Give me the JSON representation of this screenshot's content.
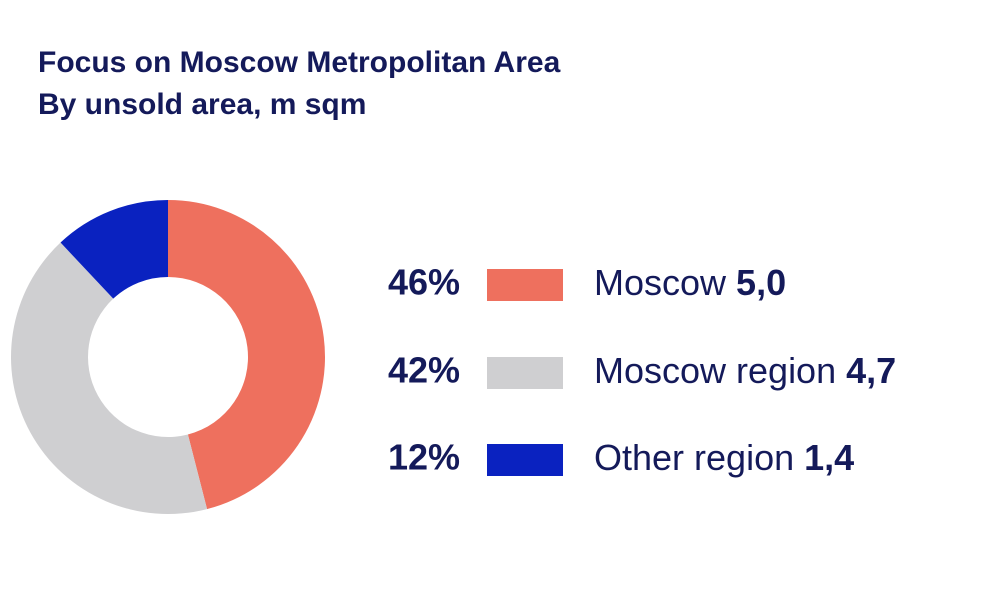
{
  "chart_data": {
    "type": "donut",
    "title": "Focus on Moscow Metropolitan Area",
    "subtitle": "By unsold area, m sqm",
    "categories": [
      "Moscow",
      "Moscow region",
      "Other region"
    ],
    "values": [
      46,
      42,
      12
    ],
    "value_labels": [
      "46%",
      "42%",
      "12%"
    ],
    "amounts": [
      {
        "value": 5.0,
        "label": "5,0"
      },
      {
        "value": 4.7,
        "label": "4,7"
      },
      {
        "value": 1.4,
        "label": "1,4"
      }
    ],
    "colors": [
      "#ee705e",
      "#cfcfd1",
      "#0a22c0"
    ]
  }
}
